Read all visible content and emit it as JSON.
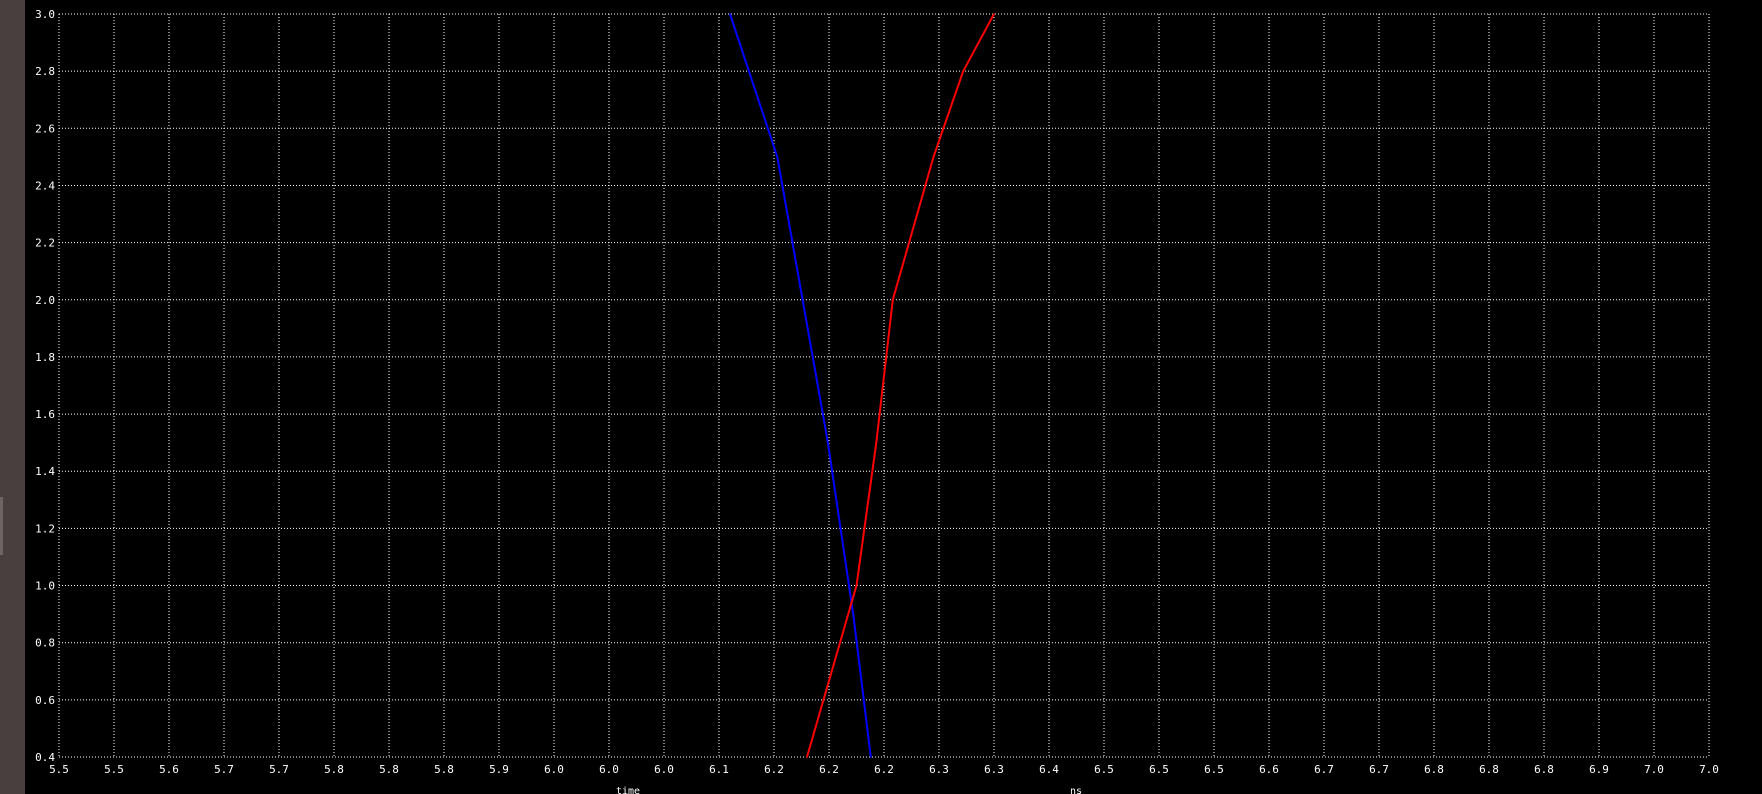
{
  "chart_data": {
    "type": "line",
    "xlim": [
      5.5,
      7.0
    ],
    "ylim": [
      0.4,
      3.0
    ],
    "grid": true,
    "background": "#000000",
    "grid_color": "#ffffff",
    "y_ticks": [
      "0.4",
      "0.6",
      "0.8",
      "1.0",
      "1.2",
      "1.4",
      "1.6",
      "1.8",
      "2.0",
      "2.2",
      "2.4",
      "2.6",
      "2.8",
      "3.0"
    ],
    "x_tick_labels": [
      "5.5",
      "5.5",
      "5.6",
      "5.7",
      "5.7",
      "5.8",
      "5.8",
      "5.8",
      "5.9",
      "6.0",
      "6.0",
      "6.0",
      "6.1",
      "6.2",
      "6.2",
      "6.2",
      "6.3",
      "6.3",
      "6.4",
      "6.5",
      "6.5",
      "6.5",
      "6.6",
      "6.7",
      "6.7",
      "6.8",
      "6.8",
      "6.8",
      "6.9",
      "7.0",
      "7.0"
    ],
    "xlabel": "time",
    "xunit": "ns",
    "series": [
      {
        "color": "#0000ff",
        "x": [
          6.11,
          6.153,
          6.199,
          6.222,
          6.238
        ],
        "y": [
          3.0,
          2.5,
          1.5,
          0.9,
          0.4
        ]
      },
      {
        "color": "#ff0000",
        "x": [
          6.18,
          6.225,
          6.243,
          6.258,
          6.295,
          6.322,
          6.35
        ],
        "y": [
          0.4,
          1.0,
          1.5,
          2.0,
          2.5,
          2.8,
          3.0
        ]
      }
    ]
  }
}
